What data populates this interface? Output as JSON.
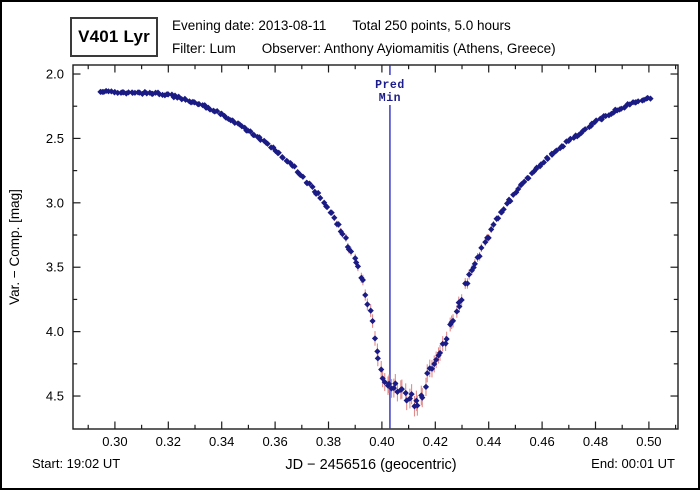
{
  "header": {
    "star_name": "V401 Lyr",
    "evening_date": "Evening date: 2013-08-11",
    "total_points": "Total 250 points, 5.0 hours",
    "filter": "Filter: Lum",
    "observer": "Observer: Anthony Ayiomamitis (Athens, Greece)"
  },
  "footer": {
    "start_label": "Start: 19:02 UT",
    "end_label": "End: 00:01 UT"
  },
  "chart_data": {
    "type": "scatter",
    "title": "V401 Lyr eclipse light curve, evening 2013-08-11",
    "xlabel": "JD − 2456516  (geocentric)",
    "ylabel": "Var. − Comp. [mag]",
    "xlim": [
      0.2843,
      0.5109
    ],
    "ylim": [
      1.93,
      4.756
    ],
    "y_axis_inverted_magnitudes": true,
    "x_major_ticks": [
      0.3,
      0.32,
      0.34,
      0.36,
      0.38,
      0.4,
      0.42,
      0.44,
      0.46,
      0.48,
      0.5
    ],
    "x_tick_labels": [
      "0.30",
      "0.32",
      "0.34",
      "0.36",
      "0.38",
      "0.40",
      "0.42",
      "0.44",
      "0.46",
      "0.48",
      "0.50"
    ],
    "x_minor_ticks": [
      0.29,
      0.31,
      0.33,
      0.35,
      0.37,
      0.39,
      0.41,
      0.43,
      0.45,
      0.47,
      0.49,
      0.51
    ],
    "y_major_ticks": [
      2.0,
      2.5,
      3.0,
      3.5,
      4.0,
      4.5
    ],
    "y_tick_labels": [
      "2.0",
      "2.5",
      "3.0",
      "3.5",
      "4.0",
      "4.5"
    ],
    "y_minor_ticks": [
      2.25,
      2.75,
      3.25,
      3.75,
      4.25,
      4.75
    ],
    "grid": false,
    "legend": "none",
    "n_points": 250,
    "marker": "diamond",
    "colors": {
      "point": "#1b1b85",
      "error_bar": "#e08585",
      "pred_min_line": "#5252cc",
      "pred_min_text": "#1c1c8c",
      "frame": "#1c1c1c"
    },
    "pred_min": {
      "x": 0.403,
      "label_line1": "Pred",
      "label_line2": "Min"
    },
    "curve_anchors": [
      [
        0.2945,
        2.145
      ],
      [
        0.298,
        2.134
      ],
      [
        0.302,
        2.15
      ],
      [
        0.306,
        2.139
      ],
      [
        0.31,
        2.148
      ],
      [
        0.314,
        2.15
      ],
      [
        0.318,
        2.157
      ],
      [
        0.322,
        2.172
      ],
      [
        0.326,
        2.198
      ],
      [
        0.33,
        2.22
      ],
      [
        0.334,
        2.252
      ],
      [
        0.338,
        2.292
      ],
      [
        0.342,
        2.337
      ],
      [
        0.346,
        2.388
      ],
      [
        0.35,
        2.443
      ],
      [
        0.354,
        2.5
      ],
      [
        0.358,
        2.558
      ],
      [
        0.362,
        2.628
      ],
      [
        0.366,
        2.703
      ],
      [
        0.37,
        2.788
      ],
      [
        0.374,
        2.88
      ],
      [
        0.378,
        2.988
      ],
      [
        0.382,
        3.118
      ],
      [
        0.386,
        3.268
      ],
      [
        0.39,
        3.445
      ],
      [
        0.393,
        3.635
      ],
      [
        0.396,
        3.885
      ],
      [
        0.398,
        4.12
      ],
      [
        0.4,
        4.31
      ],
      [
        0.402,
        4.4
      ],
      [
        0.404,
        4.43
      ],
      [
        0.406,
        4.465
      ],
      [
        0.408,
        4.455
      ],
      [
        0.41,
        4.495
      ],
      [
        0.412,
        4.57
      ],
      [
        0.414,
        4.545
      ],
      [
        0.416,
        4.4
      ],
      [
        0.418,
        4.32
      ],
      [
        0.42,
        4.25
      ],
      [
        0.422,
        4.16
      ],
      [
        0.424,
        4.06
      ],
      [
        0.426,
        3.95
      ],
      [
        0.428,
        3.835
      ],
      [
        0.43,
        3.72
      ],
      [
        0.433,
        3.56
      ],
      [
        0.436,
        3.425
      ],
      [
        0.439,
        3.29
      ],
      [
        0.442,
        3.172
      ],
      [
        0.445,
        3.07
      ],
      [
        0.448,
        2.98
      ],
      [
        0.452,
        2.872
      ],
      [
        0.456,
        2.772
      ],
      [
        0.46,
        2.692
      ],
      [
        0.464,
        2.616
      ],
      [
        0.468,
        2.55
      ],
      [
        0.472,
        2.49
      ],
      [
        0.476,
        2.43
      ],
      [
        0.48,
        2.372
      ],
      [
        0.484,
        2.322
      ],
      [
        0.488,
        2.278
      ],
      [
        0.492,
        2.24
      ],
      [
        0.496,
        2.212
      ],
      [
        0.499,
        2.192
      ],
      [
        0.5005,
        2.2
      ]
    ]
  }
}
